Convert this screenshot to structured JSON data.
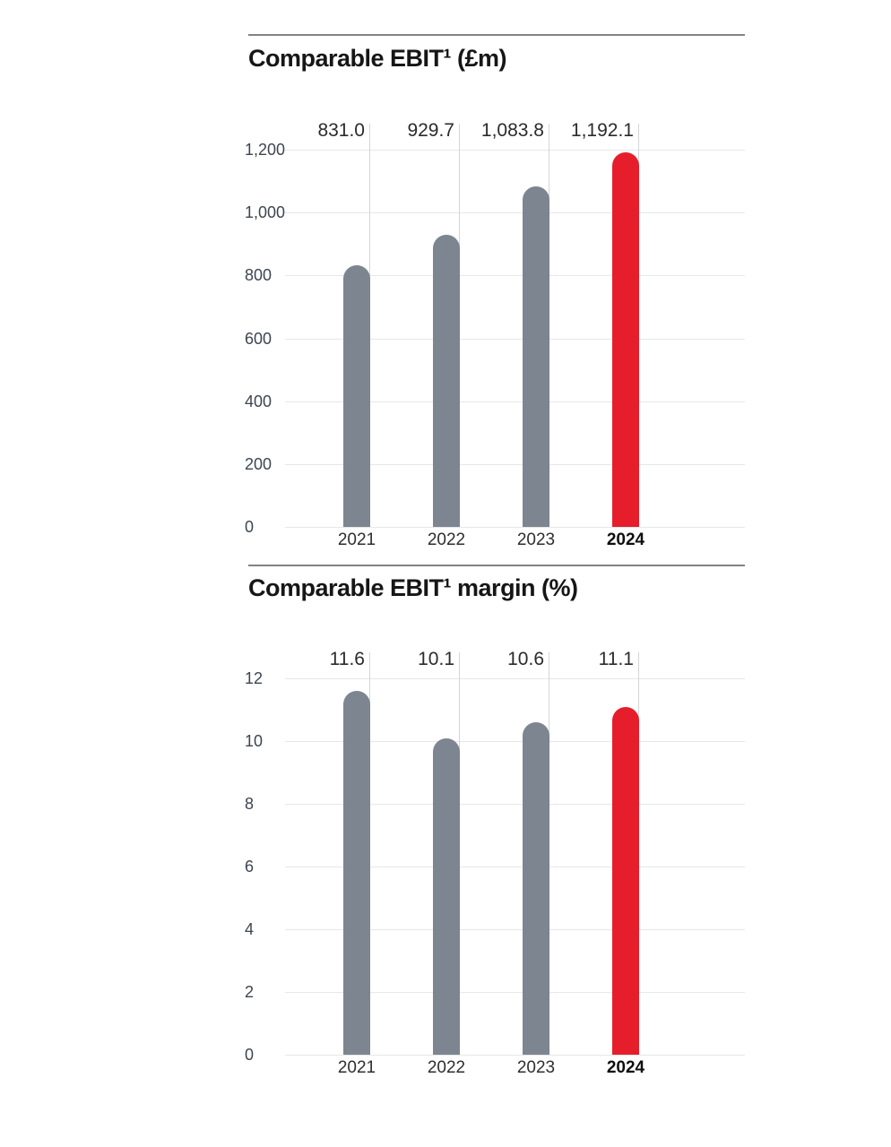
{
  "page": {
    "background": "#ffffff"
  },
  "colors": {
    "bar_default": "#7d8590",
    "bar_highlight": "#e61e2c",
    "gridline": "#e6e7e9",
    "leader_line": "#d2d5d9",
    "section_rule": "#838383"
  },
  "chart_data": [
    {
      "type": "bar",
      "title": "Comparable EBIT¹ (£m)",
      "categories": [
        "2021",
        "2022",
        "2023",
        "2024"
      ],
      "values": [
        831.0,
        929.7,
        1083.8,
        1192.1
      ],
      "value_labels": [
        "831.0",
        "929.7",
        "1,083.8",
        "1,192.1"
      ],
      "ylim": [
        0,
        1200
      ],
      "ytick_step": 200,
      "ytick_labels": [
        "1,200",
        "1,000",
        "800",
        "600",
        "400",
        "200",
        "0"
      ],
      "xlabel": "",
      "ylabel": "",
      "grid": "horizontal",
      "legend": "none",
      "highlight_index": 3,
      "bar_default_color": "#7d8590",
      "bar_highlight_color": "#e61e2c"
    },
    {
      "type": "bar",
      "title": "Comparable EBIT¹ margin (%)",
      "categories": [
        "2021",
        "2022",
        "2023",
        "2024"
      ],
      "values": [
        11.6,
        10.1,
        10.6,
        11.1
      ],
      "value_labels": [
        "11.6",
        "10.1",
        "10.6",
        "11.1"
      ],
      "ylim": [
        0,
        12
      ],
      "ytick_step": 2,
      "ytick_labels": [
        "12",
        "10",
        "8",
        "6",
        "4",
        "2",
        "0"
      ],
      "xlabel": "",
      "ylabel": "",
      "grid": "horizontal",
      "legend": "none",
      "highlight_index": 3,
      "bar_default_color": "#7d8590",
      "bar_highlight_color": "#e61e2c"
    }
  ]
}
